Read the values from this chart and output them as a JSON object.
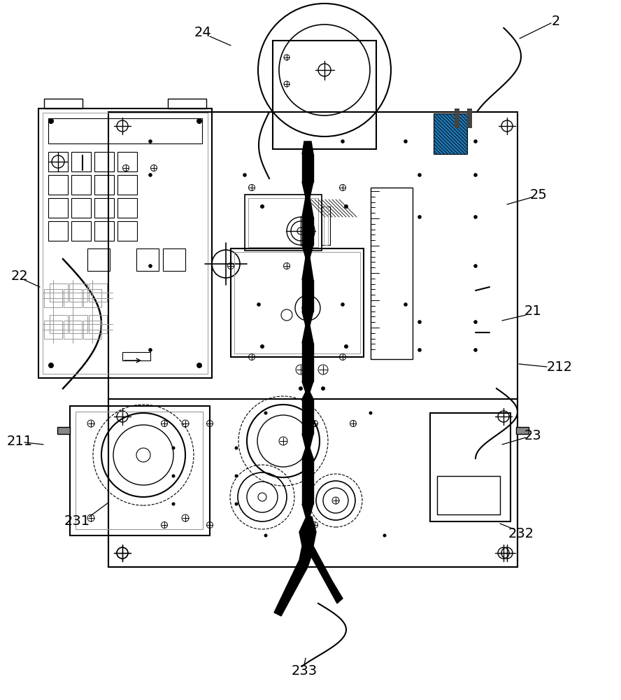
{
  "bg_color": "#ffffff",
  "lc": "#000000",
  "gc": "#999999",
  "figsize": [
    8.88,
    10.0
  ],
  "dpi": 100
}
